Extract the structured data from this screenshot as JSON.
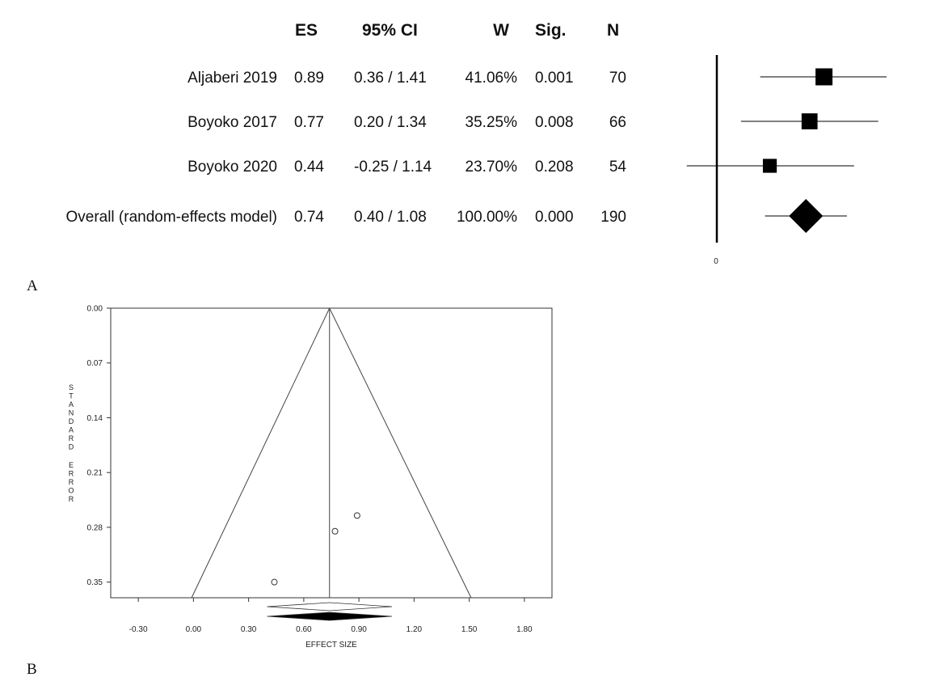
{
  "chart_data": [
    {
      "type": "forest",
      "panel_label": "A",
      "columns": [
        "ES",
        "95% CI",
        "W",
        "Sig.",
        "N"
      ],
      "zero_label": "0",
      "rows": [
        {
          "study": "Aljaberi 2019",
          "es": 0.89,
          "ci_text": "0.36 / 1.41",
          "ci_low": 0.36,
          "ci_high": 1.41,
          "weight": "41.06%",
          "sig": "0.001",
          "n": "70"
        },
        {
          "study": "Boyoko 2017",
          "es": 0.77,
          "ci_text": "0.20 / 1.34",
          "ci_low": 0.2,
          "ci_high": 1.34,
          "weight": "35.25%",
          "sig": "0.008",
          "n": "66"
        },
        {
          "study": "Boyoko 2020",
          "es": 0.44,
          "ci_text": "-0.25 / 1.14",
          "ci_low": -0.25,
          "ci_high": 1.14,
          "weight": "23.70%",
          "sig": "0.208",
          "n": "54"
        }
      ],
      "overall": {
        "study": "Overall (random-effects model)",
        "es": 0.74,
        "ci_text": "0.40 / 1.08",
        "ci_low": 0.4,
        "ci_high": 1.08,
        "weight": "100.00%",
        "sig": "0.000",
        "n": "190"
      }
    },
    {
      "type": "scatter",
      "panel_label": "B",
      "xlabel": "EFFECT SIZE",
      "ylabel": "STANDARD ERROR",
      "xlim": [
        -0.45,
        1.95
      ],
      "ylim": [
        0.0,
        0.37
      ],
      "x_ticks": [
        "-0.30",
        "0.00",
        "0.30",
        "0.60",
        "0.90",
        "1.20",
        "1.50",
        "1.80"
      ],
      "y_ticks": [
        "0.00",
        "0.07",
        "0.14",
        "0.21",
        "0.28",
        "0.35"
      ],
      "pooled_es": 0.74,
      "funnel_base_se": 0.37,
      "funnel_base_low": -0.01,
      "funnel_base_high": 1.51,
      "points": [
        {
          "x": 0.89,
          "y": 0.265
        },
        {
          "x": 0.77,
          "y": 0.285
        },
        {
          "x": 0.44,
          "y": 0.35
        }
      ],
      "summary_diamonds": [
        {
          "low": 0.4,
          "high": 1.08,
          "center": 0.74,
          "fill": "#ffffff"
        },
        {
          "low": 0.4,
          "high": 1.08,
          "center": 0.74,
          "fill": "#000000"
        }
      ]
    }
  ]
}
